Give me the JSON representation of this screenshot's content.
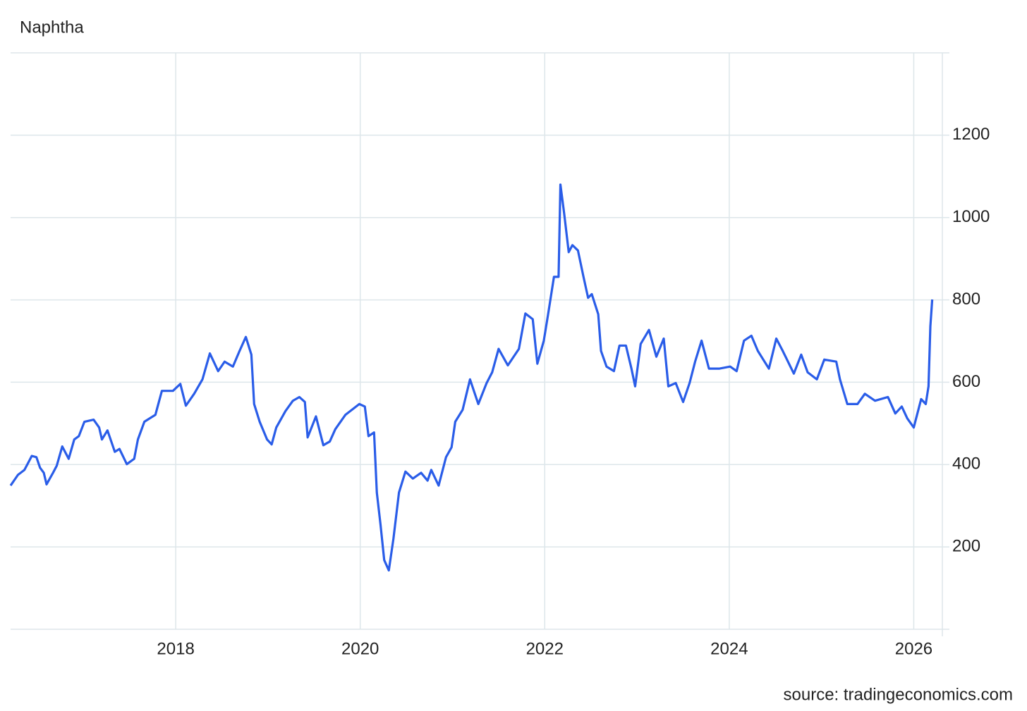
{
  "chart_data": {
    "type": "line",
    "title": "Naphtha",
    "source": "source: tradingeconomics.com",
    "xlim": [
      2016.21,
      2026.31
    ],
    "xticks": [
      2018,
      2020,
      2022,
      2024,
      2026
    ],
    "ylim": [
      0,
      1400
    ],
    "yticks": [
      200,
      400,
      600,
      800,
      1000,
      1200
    ],
    "grid": true,
    "series": [
      {
        "color": "#2a5de8",
        "x": [
          2016.21,
          2016.29,
          2016.36,
          2016.4,
          2016.44,
          2016.49,
          2016.53,
          2016.57,
          2016.6,
          2016.67,
          2016.71,
          2016.77,
          2016.84,
          2016.9,
          2016.95,
          2017.01,
          2017.11,
          2017.17,
          2017.2,
          2017.26,
          2017.34,
          2017.39,
          2017.47,
          2017.55,
          2017.59,
          2017.66,
          2017.78,
          2017.85,
          2017.97,
          2018.05,
          2018.11,
          2018.2,
          2018.29,
          2018.37,
          2018.46,
          2018.53,
          2018.62,
          2018.69,
          2018.76,
          2018.82,
          2018.85,
          2018.91,
          2018.99,
          2019.04,
          2019.09,
          2019.19,
          2019.27,
          2019.34,
          2019.4,
          2019.43,
          2019.52,
          2019.6,
          2019.67,
          2019.73,
          2019.84,
          2019.99,
          2020.05,
          2020.09,
          2020.15,
          2020.18,
          2020.22,
          2020.26,
          2020.31,
          2020.36,
          2020.42,
          2020.49,
          2020.57,
          2020.66,
          2020.73,
          2020.77,
          2020.85,
          2020.93,
          2020.99,
          2021.03,
          2021.11,
          2021.19,
          2021.28,
          2021.37,
          2021.43,
          2021.5,
          2021.6,
          2021.72,
          2021.79,
          2021.87,
          2021.92,
          2021.99,
          2022.04,
          2022.1,
          2022.15,
          2022.17,
          2022.21,
          2022.26,
          2022.3,
          2022.36,
          2022.42,
          2022.47,
          2022.51,
          2022.58,
          2022.61,
          2022.67,
          2022.75,
          2022.81,
          2022.88,
          2022.94,
          2022.98,
          2023.04,
          2023.13,
          2023.21,
          2023.29,
          2023.34,
          2023.42,
          2023.5,
          2023.57,
          2023.63,
          2023.7,
          2023.78,
          2023.89,
          2024.01,
          2024.08,
          2024.16,
          2024.24,
          2024.31,
          2024.43,
          2024.51,
          2024.58,
          2024.7,
          2024.78,
          2024.85,
          2024.95,
          2025.03,
          2025.16,
          2025.2,
          2025.28,
          2025.39,
          2025.47,
          2025.58,
          2025.72,
          2025.8,
          2025.87,
          2025.93,
          2026.0,
          2026.08,
          2026.13,
          2026.16,
          2026.18,
          2026.2
        ],
        "values": [
          349,
          375,
          387,
          404,
          421,
          418,
          392,
          380,
          352,
          380,
          397,
          444,
          414,
          461,
          469,
          504,
          509,
          490,
          461,
          483,
          431,
          438,
          401,
          414,
          461,
          504,
          521,
          579,
          579,
          596,
          543,
          572,
          607,
          670,
          627,
          650,
          638,
          675,
          710,
          667,
          547,
          504,
          461,
          449,
          490,
          530,
          555,
          564,
          552,
          466,
          517,
          447,
          456,
          486,
          521,
          547,
          541,
          469,
          478,
          332,
          254,
          168,
          143,
          220,
          332,
          383,
          366,
          380,
          361,
          387,
          349,
          418,
          442,
          504,
          533,
          607,
          547,
          598,
          624,
          681,
          641,
          681,
          767,
          753,
          645,
          701,
          770,
          856,
          856,
          1080,
          1011,
          916,
          933,
          920,
          856,
          805,
          814,
          765,
          676,
          638,
          627,
          689,
          689,
          633,
          590,
          693,
          727,
          662,
          706,
          590,
          598,
          552,
          598,
          650,
          701,
          633,
          633,
          638,
          627,
          701,
          713,
          676,
          633,
          706,
          676,
          621,
          667,
          624,
          607,
          655,
          650,
          607,
          547,
          547,
          572,
          555,
          564,
          524,
          541,
          512,
          490,
          559,
          547,
          590,
          736,
          801
        ]
      }
    ]
  }
}
